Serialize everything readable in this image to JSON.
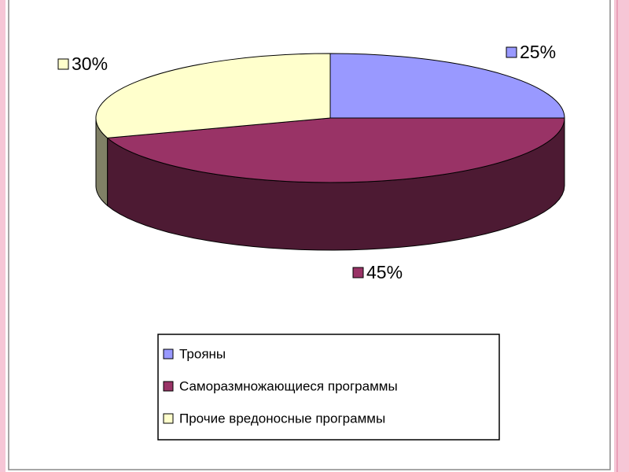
{
  "chart_data": {
    "type": "pie",
    "categories": [
      "Трояны",
      "Саморазмножающиеся программы",
      "Прочие вредоносные программы"
    ],
    "values": [
      25,
      45,
      30
    ],
    "value_labels": [
      "25%",
      "45%",
      "30%"
    ],
    "colors": [
      "#9999ff",
      "#993366",
      "#ffffcc"
    ],
    "legend": "bottom"
  }
}
